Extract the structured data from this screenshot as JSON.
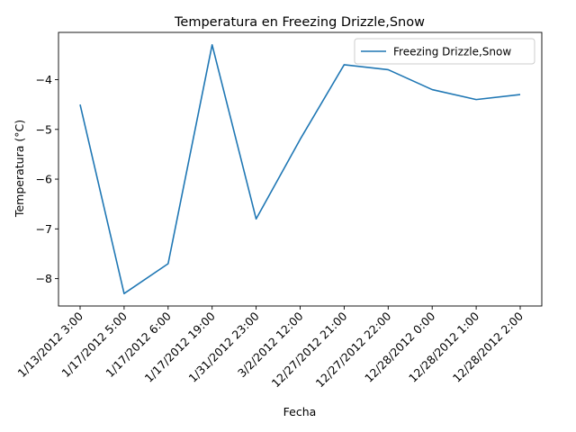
{
  "chart_data": {
    "type": "line",
    "title": "Temperatura en Freezing Drizzle,Snow",
    "xlabel": "Fecha",
    "ylabel": "Temperatura (°C)",
    "categories": [
      "1/13/2012 3:00",
      "1/17/2012 5:00",
      "1/17/2012 6:00",
      "1/17/2012 19:00",
      "1/31/2012 23:00",
      "3/2/2012 12:00",
      "12/27/2012 21:00",
      "12/27/2012 22:00",
      "12/28/2012 0:00",
      "12/28/2012 1:00",
      "12/28/2012 2:00"
    ],
    "series": [
      {
        "name": "Freezing Drizzle,Snow",
        "color": "#1f77b4",
        "values": [
          -4.5,
          -8.3,
          -7.7,
          -3.3,
          -6.8,
          -5.2,
          -3.7,
          -3.8,
          -4.2,
          -4.4,
          -4.3
        ]
      }
    ],
    "yticks": [
      -8,
      -7,
      -6,
      -5,
      -4
    ],
    "ylim": [
      -8.55,
      -3.05
    ],
    "grid": false,
    "legend": "upper-right"
  }
}
